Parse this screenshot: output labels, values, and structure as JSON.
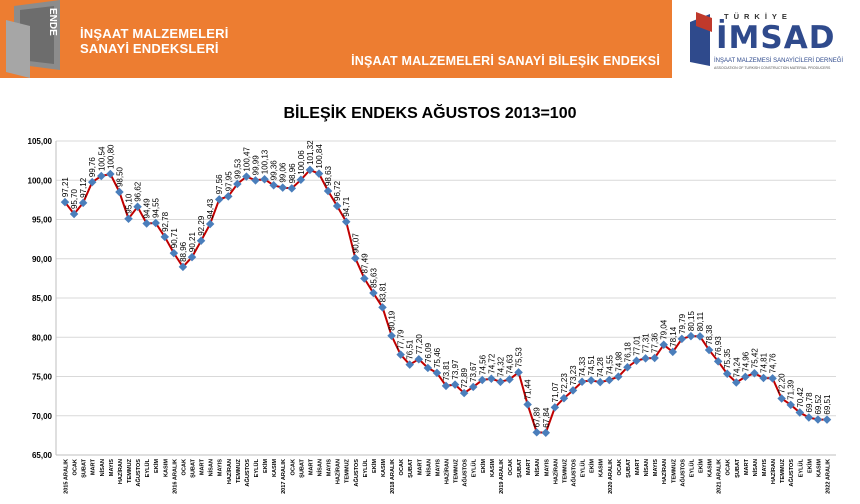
{
  "banner": {
    "title": "İNŞAAT MALZEMELERİ\nSANAYİ ENDEKSLERİ",
    "subtitle": "İNŞAAT MALZEMELERİ SANAYİ BİLEŞİK ENDEKSİ",
    "icon_text": "ENDE",
    "color": "#ed7d31"
  },
  "logo": {
    "top_text": "TÜRKİYE",
    "main_text": "İMSAD",
    "sub1": "İNŞAAT MALZEMESİ SANAYİCİLERİ DERNEĞİ",
    "sub2": "ASSOCIATION OF TURKISH CONSTRUCTION MATERIAL PRODUCERS"
  },
  "chart_data": {
    "type": "line",
    "title": "BİLEŞİK ENDEKS AĞUSTOS 2013=100",
    "xlabel": "",
    "ylabel": "",
    "ylim": [
      65,
      105
    ],
    "yticks": [
      "65,00",
      "70,00",
      "75,00",
      "80,00",
      "85,00",
      "90,00",
      "95,00",
      "100,00",
      "105,00"
    ],
    "grid": true,
    "line_color": "#c00000",
    "marker_color": "#4a7ebb",
    "categories": [
      "2015 ARALIK",
      "OCAK",
      "ŞUBAT",
      "MART",
      "NİSAN",
      "MAYIS",
      "HAZİRAN",
      "TEMMUZ",
      "AĞUSTOS",
      "EYLÜL",
      "EKİM",
      "KASIM",
      "2016 ARALIK",
      "OCAK",
      "ŞUBAT",
      "MART",
      "NİSAN",
      "MAYIS",
      "HAZİRAN",
      "TEMMUZ",
      "AĞUSTOS",
      "EYLÜL",
      "EKİM",
      "KASIM",
      "2017 ARALIK",
      "OCAK",
      "ŞUBAT",
      "MART",
      "NİSAN",
      "MAYIS",
      "HAZİRAN",
      "TEMMUZ",
      "AĞUSTOS",
      "EYLÜL",
      "EKİM",
      "KASIM",
      "2018 ARALIK",
      "OCAK",
      "ŞUBAT",
      "MART",
      "NİSAN",
      "MAYIS",
      "HAZİRAN",
      "TEMMUZ",
      "AĞUSTOS",
      "EYLÜL",
      "EKİM",
      "KASIM",
      "2019 ARALIK",
      "OCAK",
      "ŞUBAT",
      "MART",
      "NİSAN",
      "MAYIS",
      "HAZİRAN",
      "TEMMUZ",
      "AĞUSTOS",
      "EYLÜL",
      "EKİM",
      "KASIM",
      "2020 ARALIK",
      "OCAK",
      "ŞUBAT",
      "MART",
      "NİSAN",
      "MAYIS",
      "HAZİRAN",
      "TEMMUZ",
      "AĞUSTOS",
      "EYLÜL",
      "EKİM",
      "KASIM",
      "2021 ARALIK",
      "OCAK",
      "ŞUBAT",
      "MART",
      "NİSAN",
      "MAYIS",
      "HAZİRAN",
      "TEMMUZ",
      "AĞUSTOS",
      "EYLÜL",
      "EKİM",
      "KASIM",
      "2022 ARALIK"
    ],
    "values": [
      97.21,
      95.7,
      97.12,
      99.76,
      100.54,
      100.8,
      98.5,
      95.1,
      96.62,
      94.49,
      94.55,
      92.78,
      90.71,
      88.96,
      90.21,
      92.29,
      94.43,
      97.56,
      97.95,
      99.53,
      100.47,
      99.99,
      100.13,
      99.36,
      99.06,
      98.96,
      100.06,
      101.32,
      100.84,
      98.63,
      96.72,
      94.71,
      90.07,
      87.49,
      85.63,
      83.81,
      80.19,
      77.79,
      76.51,
      77.2,
      76.09,
      75.46,
      73.81,
      73.97,
      72.89,
      73.67,
      74.56,
      74.72,
      74.32,
      74.63,
      75.53,
      71.44,
      67.89,
      67.84,
      71.07,
      72.23,
      73.23,
      74.33,
      74.51,
      74.28,
      74.55,
      74.98,
      76.18,
      77.01,
      77.31,
      77.36,
      79.04,
      78.14,
      79.79,
      80.15,
      80.11,
      78.38,
      76.93,
      75.35,
      74.24,
      74.96,
      75.42,
      74.81,
      74.76,
      72.2,
      71.39,
      70.42,
      69.78,
      69.52,
      69.51
    ],
    "value_labels": [
      "97,21",
      "95,70",
      "97,12",
      "99,76",
      "100,54",
      "100,80",
      "98,50",
      "95,10",
      "96,62",
      "94,49",
      "94,55",
      "92,78",
      "90,71",
      "88,96",
      "90,21",
      "92,29",
      "94,43",
      "97,56",
      "97,95",
      "99,53",
      "100,47",
      "99,99",
      "100,13",
      "99,36",
      "99,06",
      "98,96",
      "100,06",
      "101,32",
      "100,84",
      "98,63",
      "96,72",
      "94,71",
      "90,07",
      "87,49",
      "85,63",
      "83,81",
      "80,19",
      "77,79",
      "76,51",
      "77,20",
      "76,09",
      "75,46",
      "73,81",
      "73,97",
      "72,89",
      "73,67",
      "74,56",
      "74,72",
      "74,32",
      "74,63",
      "75,53",
      "71,44",
      "67,89",
      "67,84",
      "71,07",
      "72,23",
      "73,23",
      "74,33",
      "74,51",
      "74,28",
      "74,55",
      "74,98",
      "76,18",
      "77,01",
      "77,31",
      "77,36",
      "79,04",
      "78,14",
      "79,79",
      "80,15",
      "80,11",
      "78,38",
      "76,93",
      "75,35",
      "74,24",
      "74,96",
      "75,42",
      "74,81",
      "74,76",
      "72,20",
      "71,39",
      "70,42",
      "69,78",
      "69,52",
      "69,51"
    ]
  }
}
